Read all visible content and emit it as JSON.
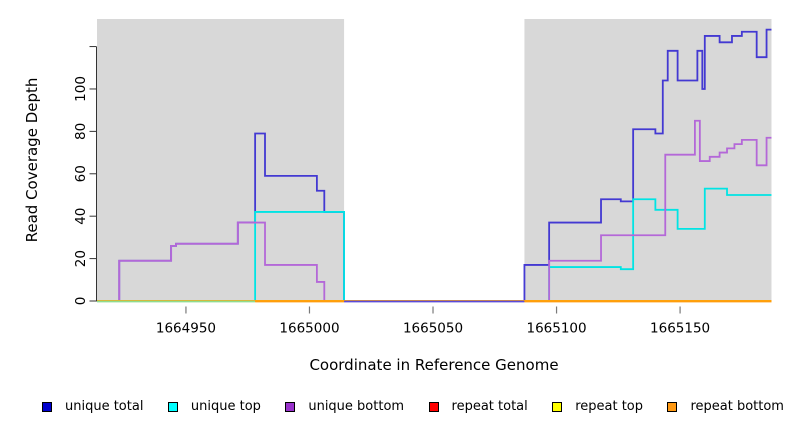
{
  "figure": {
    "x_axis_title": "Coordinate in Reference Genome",
    "y_axis_title": "Read Coverage Depth"
  },
  "chart_data": {
    "type": "line",
    "subtype": "step-after-coverage",
    "title": "",
    "xlabel": "Coordinate in Reference Genome",
    "ylabel": "Read Coverage Depth",
    "xlim": [
      1664914,
      1665187
    ],
    "ylim": [
      0,
      133
    ],
    "grid": "off",
    "legend_position": "bottom",
    "x_ticks": [
      {
        "v": 1664950,
        "label": "1664950"
      },
      {
        "v": 1665000,
        "label": "1665000"
      },
      {
        "v": 1665050,
        "label": "1665050"
      },
      {
        "v": 1665100,
        "label": "1665100"
      },
      {
        "v": 1665150,
        "label": "1665150"
      }
    ],
    "y_ticks": [
      {
        "v": 0,
        "label": "0"
      },
      {
        "v": 20,
        "label": "20"
      },
      {
        "v": 40,
        "label": "40"
      },
      {
        "v": 60,
        "label": "60"
      },
      {
        "v": 80,
        "label": "80"
      },
      {
        "v": 100,
        "label": "100"
      },
      {
        "v": 120,
        "label": ""
      }
    ],
    "shaded_regions": [
      {
        "name": "left-shaded-region",
        "from": 1664914,
        "to": 1665014,
        "color": "#d8d8d8"
      },
      {
        "name": "right-shaded-region",
        "from": 1665087,
        "to": 1665187,
        "color": "#d8d8d8"
      }
    ],
    "series": [
      {
        "name": "unique total",
        "color": "#2d22d0",
        "opacity": 0.88,
        "points": [
          [
            1664914,
            0
          ],
          [
            1664923,
            19
          ],
          [
            1664944,
            26
          ],
          [
            1664946,
            27
          ],
          [
            1664971,
            37
          ],
          [
            1664978,
            79
          ],
          [
            1664982,
            59
          ],
          [
            1665003,
            52
          ],
          [
            1665006,
            42
          ],
          [
            1665014,
            0
          ],
          [
            1665087,
            17
          ],
          [
            1665097,
            37
          ],
          [
            1665118,
            48
          ],
          [
            1665126,
            47
          ],
          [
            1665131,
            81
          ],
          [
            1665140,
            79
          ],
          [
            1665143,
            104
          ],
          [
            1665145,
            118
          ],
          [
            1665149,
            104
          ],
          [
            1665157,
            118
          ],
          [
            1665159,
            100
          ],
          [
            1665160,
            125
          ],
          [
            1665166,
            122
          ],
          [
            1665171,
            125
          ],
          [
            1665175,
            127
          ],
          [
            1665181,
            115
          ],
          [
            1665185,
            128
          ],
          [
            1665187,
            128
          ]
        ]
      },
      {
        "name": "unique top",
        "color": "#00e4e4",
        "opacity": 1,
        "points": [
          [
            1664914,
            0
          ],
          [
            1664978,
            42
          ],
          [
            1665014,
            0
          ],
          [
            1665097,
            16
          ],
          [
            1665126,
            15
          ],
          [
            1665131,
            48
          ],
          [
            1665140,
            43
          ],
          [
            1665149,
            34
          ],
          [
            1665160,
            53
          ],
          [
            1665169,
            50
          ],
          [
            1665187,
            50
          ]
        ]
      },
      {
        "name": "unique bottom",
        "color": "#b468d8",
        "opacity": 1,
        "points": [
          [
            1664914,
            0
          ],
          [
            1664923,
            19
          ],
          [
            1664944,
            26
          ],
          [
            1664946,
            27
          ],
          [
            1664971,
            37
          ],
          [
            1664982,
            17
          ],
          [
            1665003,
            9
          ],
          [
            1665006,
            0
          ],
          [
            1665097,
            19
          ],
          [
            1665118,
            31
          ],
          [
            1665144,
            69
          ],
          [
            1665156,
            85
          ],
          [
            1665158,
            66
          ],
          [
            1665162,
            68
          ],
          [
            1665166,
            70
          ],
          [
            1665169,
            72
          ],
          [
            1665172,
            74
          ],
          [
            1665175,
            76
          ],
          [
            1665181,
            64
          ],
          [
            1665185,
            77
          ],
          [
            1665187,
            77
          ]
        ]
      },
      {
        "name": "repeat total",
        "color": "#e80000",
        "opacity": 1,
        "points": [
          [
            1664914,
            0
          ],
          [
            1665187,
            0
          ]
        ]
      },
      {
        "name": "repeat top",
        "color": "#ffff00",
        "opacity": 1,
        "points": [
          [
            1664914,
            0
          ],
          [
            1665187,
            0
          ]
        ]
      },
      {
        "name": "repeat bottom",
        "color": "#ff9d0c",
        "opacity": 1,
        "points": [
          [
            1664914,
            0
          ],
          [
            1665187,
            0
          ]
        ]
      }
    ],
    "baseline_overlays": [
      {
        "from": 1664914,
        "to": 1664978,
        "color": "#8fdc8f"
      },
      {
        "from": 1664978,
        "to": 1665014,
        "color": "#ff9d0c"
      },
      {
        "from": 1665014,
        "to": 1665087,
        "color": "#5b4bd8"
      },
      {
        "from": 1665087,
        "to": 1665187,
        "color": "#ff9d0c"
      }
    ],
    "legend": [
      {
        "label": "unique total",
        "color": "#0000cd"
      },
      {
        "label": "unique top",
        "color": "#00ffff"
      },
      {
        "label": "unique bottom",
        "color": "#9932cc"
      },
      {
        "label": "repeat total",
        "color": "#ff0000"
      },
      {
        "label": "repeat top",
        "color": "#ffff00"
      },
      {
        "label": "repeat bottom",
        "color": "#ff9912"
      }
    ]
  }
}
